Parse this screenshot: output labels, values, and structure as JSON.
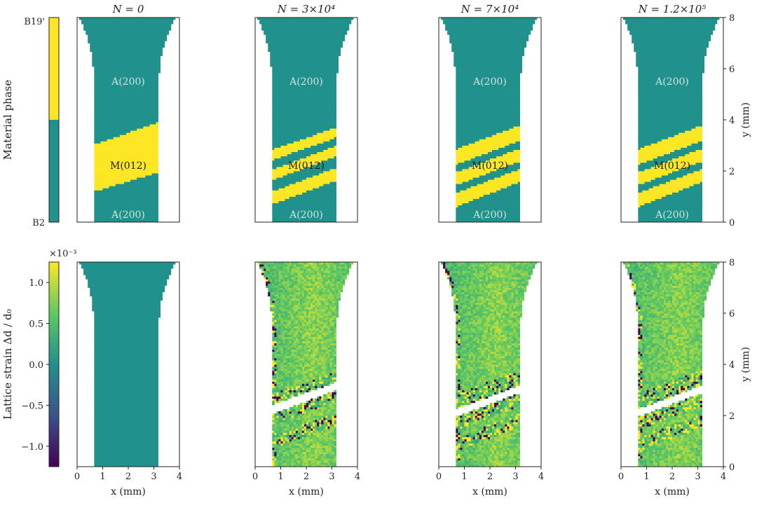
{
  "figure": {
    "column_titles": [
      "N = 0",
      "N = 3×10⁴",
      "N = 7×10⁴",
      "N = 1.2×10⁵"
    ],
    "colors": {
      "austenite": "#21918c",
      "martensite": "#fde725",
      "axis": "#222222",
      "background": "#ffffff"
    },
    "row_top": {
      "colorbar_label": "Material phase",
      "colorbar_ticks": [
        "B19'",
        "B2"
      ],
      "region_labels": {
        "austenite_upper": "A(200)",
        "martensite": "M(012)",
        "austenite_lower": "A(200)"
      }
    },
    "row_bottom": {
      "colorbar_label": "Lattice strain Δd / d₀",
      "colorbar_multiplier": "×10⁻³",
      "colorbar_ticks": [
        "1.0",
        "0.5",
        "0.0",
        "−0.5",
        "−1.0"
      ],
      "colormap": [
        "#440154",
        "#3b528b",
        "#21918c",
        "#5ec962",
        "#fde725"
      ]
    },
    "x_ticks": [
      "0",
      "1",
      "2",
      "3",
      "4"
    ],
    "y_ticks": [
      "0",
      "2",
      "4",
      "6",
      "8"
    ],
    "x_label": "x (mm)",
    "y_label": "y (mm)"
  },
  "chart_data": [
    {
      "type": "heatmap",
      "title": "N = 0",
      "quantity": "Material phase",
      "xlabel": "x (mm)",
      "ylabel": "y (mm)",
      "xlim": [
        0,
        4
      ],
      "ylim": [
        0,
        8
      ],
      "martensite_bands": [
        {
          "y_low_left": 1.0,
          "y_high_left": 2.8,
          "y_low_right": 2.2,
          "y_high_right": 4.2
        }
      ]
    },
    {
      "type": "heatmap",
      "title": "N = 3×10⁴",
      "quantity": "Material phase",
      "xlabel": "x (mm)",
      "ylabel": "y (mm)",
      "xlim": [
        0,
        4
      ],
      "ylim": [
        0,
        8
      ],
      "martensite_bands": [
        {
          "y_low_left": 0.45,
          "y_high_left": 0.95,
          "y_low_right": 1.95,
          "y_high_right": 2.45
        },
        {
          "y_low_left": 1.4,
          "y_high_left": 1.8,
          "y_low_right": 2.9,
          "y_high_right": 3.3
        },
        {
          "y_low_left": 2.2,
          "y_high_left": 2.6,
          "y_low_right": 3.6,
          "y_high_right": 4.0
        }
      ]
    },
    {
      "type": "heatmap",
      "title": "N = 7×10⁴",
      "quantity": "Material phase",
      "xlabel": "x (mm)",
      "ylabel": "y (mm)",
      "xlim": [
        0,
        4
      ],
      "ylim": [
        0,
        8
      ],
      "martensite_bands": [
        {
          "y_low_left": 0.35,
          "y_high_left": 0.9,
          "y_low_right": 1.9,
          "y_high_right": 2.4
        },
        {
          "y_low_left": 1.2,
          "y_high_left": 1.7,
          "y_low_right": 2.7,
          "y_high_right": 3.2
        },
        {
          "y_low_left": 2.0,
          "y_high_left": 2.6,
          "y_low_right": 3.5,
          "y_high_right": 4.1
        }
      ]
    },
    {
      "type": "heatmap",
      "title": "N = 1.2×10⁵",
      "quantity": "Material phase",
      "xlabel": "x (mm)",
      "ylabel": "y (mm)",
      "xlim": [
        0,
        4
      ],
      "ylim": [
        0,
        8
      ],
      "martensite_bands": [
        {
          "y_low_left": 0.35,
          "y_high_left": 0.9,
          "y_low_right": 1.9,
          "y_high_right": 2.4
        },
        {
          "y_low_left": 1.2,
          "y_high_left": 1.7,
          "y_low_right": 2.7,
          "y_high_right": 3.2
        },
        {
          "y_low_left": 2.0,
          "y_high_left": 2.6,
          "y_low_right": 3.5,
          "y_high_right": 4.1
        }
      ]
    },
    {
      "type": "heatmap",
      "title": "N = 0",
      "quantity": "Lattice strain Δd / d₀",
      "xlabel": "x (mm)",
      "ylabel": "y (mm)",
      "xlim": [
        0,
        4
      ],
      "ylim": [
        0,
        8
      ],
      "clim": [
        -0.00125,
        0.00125
      ],
      "mean_strain": 0.0
    },
    {
      "type": "heatmap",
      "title": "N = 3×10⁴",
      "quantity": "Lattice strain Δd / d₀",
      "xlabel": "x (mm)",
      "ylabel": "y (mm)",
      "xlim": [
        0,
        4
      ],
      "ylim": [
        0,
        8
      ],
      "clim": [
        -0.00125,
        0.00125
      ],
      "mean_strain": 0.0007
    },
    {
      "type": "heatmap",
      "title": "N = 7×10⁴",
      "quantity": "Lattice strain Δd / d₀",
      "xlabel": "x (mm)",
      "ylabel": "y (mm)",
      "xlim": [
        0,
        4
      ],
      "ylim": [
        0,
        8
      ],
      "clim": [
        -0.00125,
        0.00125
      ],
      "mean_strain": 0.0007
    },
    {
      "type": "heatmap",
      "title": "N = 1.2×10⁵",
      "quantity": "Lattice strain Δd / d₀",
      "xlabel": "x (mm)",
      "ylabel": "y (mm)",
      "xlim": [
        0,
        4
      ],
      "ylim": [
        0,
        8
      ],
      "clim": [
        -0.00125,
        0.00125
      ],
      "mean_strain": 0.0007
    }
  ]
}
